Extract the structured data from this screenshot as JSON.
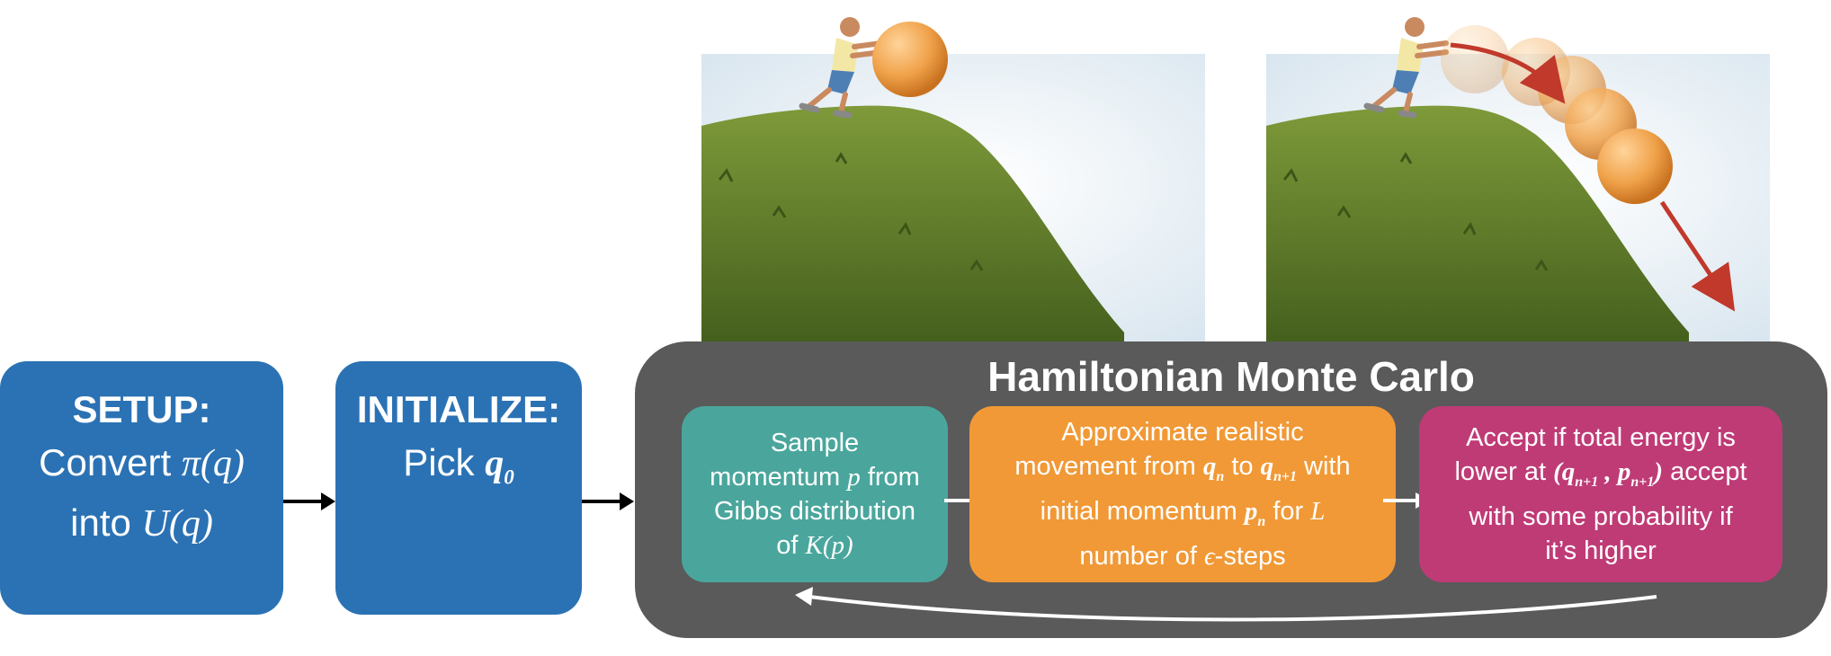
{
  "setup": {
    "heading": "SETUP:",
    "line1_text": "Convert",
    "line1_math": "π(q)",
    "line2_text": "into",
    "line2_math": "U(q)"
  },
  "initialize": {
    "heading": "INITIALIZE:",
    "text": "Pick",
    "math": "q",
    "math_sub": "0"
  },
  "hmc": {
    "title": "Hamiltonian Monte Carlo",
    "step1": {
      "t1": "Sample",
      "t2": "momentum",
      "m1": "p",
      "t3": "from",
      "t4": "Gibbs distribution",
      "t5": "of",
      "m2": "K(p)"
    },
    "step2": {
      "t1": "Approximate realistic",
      "t2": "movement from",
      "m1": "q",
      "m1_sub": "n",
      "t3": "to",
      "m2": "q",
      "m2_sub": "n+1",
      "t4": "with",
      "t5": "initial momentum",
      "m3": "p",
      "m3_sub": "n",
      "t6": "for",
      "m4": "L",
      "t7": "number of",
      "m5": "ϵ",
      "t8": "-steps"
    },
    "step3": {
      "t1": "Accept if total energy is",
      "t2": "lower at",
      "m1": "(q",
      "m1_sub": "n+1",
      "sep": ",",
      "m2": "p",
      "m2_sub": "n+1",
      "m3": ")",
      "t3": "accept",
      "t4": "with some probability if",
      "t5": "it’s higher"
    }
  },
  "colors": {
    "blue_box": "#2b72b4",
    "hmc_panel": "#5a5a5a",
    "step1": "#4aa69c",
    "step2": "#f19936",
    "step3": "#bf3b76",
    "grass": "#5f7a2a",
    "ball": "#f0a24a",
    "trajectory_arrow": "#c0392b"
  },
  "illustrations": {
    "left": "person-pushing-ball-up-hill",
    "right": "ball-rolling-down-hill-trajectory"
  }
}
